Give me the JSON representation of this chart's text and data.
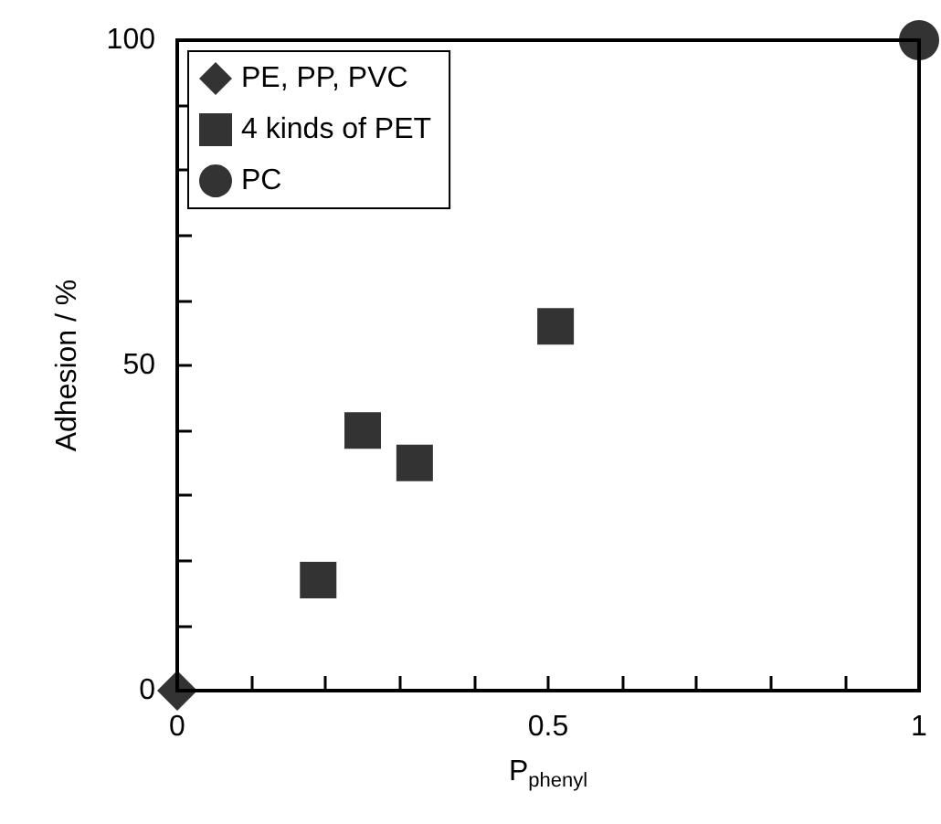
{
  "chart_data": {
    "type": "scatter",
    "xlabel": "P$_{phenyl}$",
    "ylabel": "Adhesion / %",
    "xlim": [
      0,
      1
    ],
    "ylim": [
      0,
      100
    ],
    "xticks": [
      0,
      {
        "value": 0.1,
        "label": null
      },
      {
        "value": 0.2,
        "label": null
      },
      {
        "value": 0.3,
        "label": null
      },
      {
        "value": 0.4,
        "label": null
      },
      0.5,
      {
        "value": 0.6,
        "label": null
      },
      {
        "value": 0.7,
        "label": null
      },
      {
        "value": 0.8,
        "label": null
      },
      {
        "value": 0.9,
        "label": null
      },
      1
    ],
    "yticks": [
      0,
      {
        "value": 10,
        "label": null
      },
      {
        "value": 20,
        "label": null
      },
      {
        "value": 30,
        "label": null
      },
      {
        "value": 40,
        "label": null
      },
      50,
      {
        "value": 60,
        "label": null
      },
      {
        "value": 70,
        "label": null
      },
      {
        "value": 80,
        "label": null
      },
      {
        "value": 90,
        "label": null
      },
      100
    ],
    "legend": "top left",
    "grid": false,
    "series": [
      {
        "name": "PE, PP, PVC",
        "color": "#000000",
        "marker": "diamond",
        "x": [
          0
        ],
        "values": [
          0
        ]
      },
      {
        "name": "4 kinds of PET",
        "color": "#000000",
        "marker": "square",
        "x": [
          0.19,
          0.25,
          0.32,
          0.51
        ],
        "values": [
          17,
          40,
          35,
          56
        ]
      },
      {
        "name": "PC",
        "color": "#000000",
        "marker": "circle",
        "x": [
          1
        ],
        "values": [
          100
        ]
      }
    ]
  }
}
